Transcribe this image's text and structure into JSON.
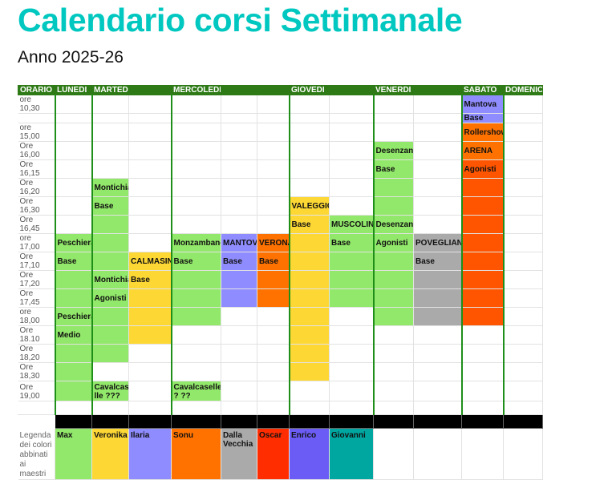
{
  "title": "Calendario corsi Settimanale",
  "subtitle": "Anno 2025-26",
  "colors": {
    "g": "#92e86a",
    "y": "#fdd835",
    "p": "#8f8cff",
    "o": "#ff7200",
    "s": "#ff5500",
    "gray": "#aaaaaa",
    "red": "#ff2d00",
    "blue": "#6b5cf5",
    "teal": "#00a6a0",
    "header": "#2e7a16",
    "title": "#00c8c0"
  },
  "header": [
    "ORARIO",
    "LUNEDI",
    "MARTEDI",
    "",
    "MERCOLEDI",
    "",
    "",
    "GIOVEDI",
    "",
    "VENERDI",
    "",
    "SABATO",
    "DOMENICA"
  ],
  "rows": [
    {
      "time": "ore 10,30",
      "cells": {
        "11": [
          "p",
          "Mantova"
        ]
      }
    },
    {
      "time": "",
      "cells": {
        "11": [
          "p",
          "Base"
        ]
      }
    },
    {
      "time": "ore 15,00",
      "cells": {
        "11": [
          "o",
          "Rollershow"
        ]
      }
    },
    {
      "time": "Ore 16,00",
      "cells": {
        "9": [
          "g",
          "Desenzano"
        ],
        "11": [
          "o",
          "ARENA"
        ]
      }
    },
    {
      "time": "Ore 16,15",
      "cells": {
        "9": [
          "g",
          "Base"
        ],
        "11": [
          "s",
          "Agonisti"
        ]
      }
    },
    {
      "time": "Ore 16,20",
      "cells": {
        "2": [
          "g",
          "Montichiari"
        ],
        "9": [
          "g",
          ""
        ],
        "11": [
          "s",
          ""
        ]
      }
    },
    {
      "time": "Ore 16,30",
      "cells": {
        "2": [
          "g",
          "Base"
        ],
        "7": [
          "y",
          "VALEGGIO"
        ],
        "9": [
          "g",
          ""
        ],
        "11": [
          "s",
          ""
        ]
      }
    },
    {
      "time": "Ore 16,45",
      "cells": {
        "2": [
          "g",
          ""
        ],
        "7": [
          "y",
          "Base"
        ],
        "8": [
          "g",
          "MUSCOLINE"
        ],
        "9": [
          "g",
          "Desenzano"
        ],
        "11": [
          "s",
          ""
        ]
      }
    },
    {
      "time": "ore 17,00",
      "cells": {
        "1": [
          "g",
          "Peschiera"
        ],
        "2": [
          "g",
          ""
        ],
        "4": [
          "g",
          "Monzambano"
        ],
        "5": [
          "p",
          "MANTOVA"
        ],
        "6": [
          "o",
          "VERONA"
        ],
        "7": [
          "y",
          ""
        ],
        "8": [
          "g",
          "Base"
        ],
        "9": [
          "g",
          "Agonisti"
        ],
        "10": [
          "gray",
          "POVEGLIANO"
        ],
        "11": [
          "s",
          ""
        ]
      }
    },
    {
      "time": "Ore 17,10",
      "cells": {
        "1": [
          "g",
          "Base"
        ],
        "2": [
          "g",
          ""
        ],
        "3": [
          "y",
          "CALMASINO"
        ],
        "4": [
          "g",
          "Base"
        ],
        "5": [
          "p",
          "Base"
        ],
        "6": [
          "o",
          "Base"
        ],
        "7": [
          "y",
          ""
        ],
        "8": [
          "g",
          ""
        ],
        "9": [
          "g",
          ""
        ],
        "10": [
          "gray",
          "Base"
        ],
        "11": [
          "s",
          ""
        ]
      }
    },
    {
      "time": "Ore 17,20",
      "cells": {
        "1": [
          "g",
          ""
        ],
        "2": [
          "g",
          "Montichiari"
        ],
        "3": [
          "y",
          "Base"
        ],
        "4": [
          "g",
          ""
        ],
        "5": [
          "p",
          ""
        ],
        "6": [
          "o",
          ""
        ],
        "7": [
          "y",
          ""
        ],
        "8": [
          "g",
          ""
        ],
        "9": [
          "g",
          ""
        ],
        "10": [
          "gray",
          ""
        ],
        "11": [
          "s",
          ""
        ]
      }
    },
    {
      "time": "Ore 17,45",
      "cells": {
        "1": [
          "g",
          ""
        ],
        "2": [
          "g",
          "Agonisti"
        ],
        "3": [
          "y",
          ""
        ],
        "4": [
          "g",
          ""
        ],
        "5": [
          "p",
          ""
        ],
        "6": [
          "o",
          ""
        ],
        "7": [
          "y",
          ""
        ],
        "8": [
          "g",
          ""
        ],
        "9": [
          "g",
          ""
        ],
        "10": [
          "gray",
          ""
        ],
        "11": [
          "s",
          ""
        ]
      }
    },
    {
      "time": "ore 18,00",
      "cells": {
        "1": [
          "g",
          "Peschiera"
        ],
        "2": [
          "g",
          ""
        ],
        "3": [
          "y",
          ""
        ],
        "4": [
          "g",
          ""
        ],
        "7": [
          "y",
          ""
        ],
        "9": [
          "g",
          ""
        ],
        "10": [
          "gray",
          ""
        ],
        "11": [
          "s",
          ""
        ]
      }
    },
    {
      "time": "Ore 18.10",
      "cells": {
        "1": [
          "g",
          "Medio"
        ],
        "2": [
          "g",
          ""
        ],
        "3": [
          "y",
          ""
        ],
        "7": [
          "y",
          ""
        ]
      }
    },
    {
      "time": "Ore 18,20",
      "cells": {
        "1": [
          "g",
          ""
        ],
        "2": [
          "g",
          ""
        ],
        "7": [
          "y",
          ""
        ]
      }
    },
    {
      "time": "Ore 18,30",
      "cells": {
        "1": [
          "g",
          ""
        ],
        "7": [
          "y",
          ""
        ]
      }
    },
    {
      "time": "Ore 19,00",
      "cells": {
        "1": [
          "g",
          ""
        ],
        "2": [
          "g",
          "Cavalcase lle ???"
        ],
        "4": [
          "g",
          "Cavalcaselle ? ??"
        ]
      }
    },
    {
      "time": "",
      "cells": {}
    }
  ],
  "legend": {
    "label": "Legenda dei colori abbinati ai maestri",
    "items": [
      {
        "color": "g",
        "name": "Max"
      },
      {
        "color": "y",
        "name": "Veronika"
      },
      {
        "color": "p",
        "name": "Ilaria"
      },
      {
        "color": "o",
        "name": "Sonu"
      },
      {
        "color": "gray",
        "name": "Dalla Vecchia"
      },
      {
        "color": "red",
        "name": "Oscar"
      },
      {
        "color": "blue",
        "name": "Enrico"
      },
      {
        "color": "teal",
        "name": "Giovanni"
      }
    ]
  }
}
